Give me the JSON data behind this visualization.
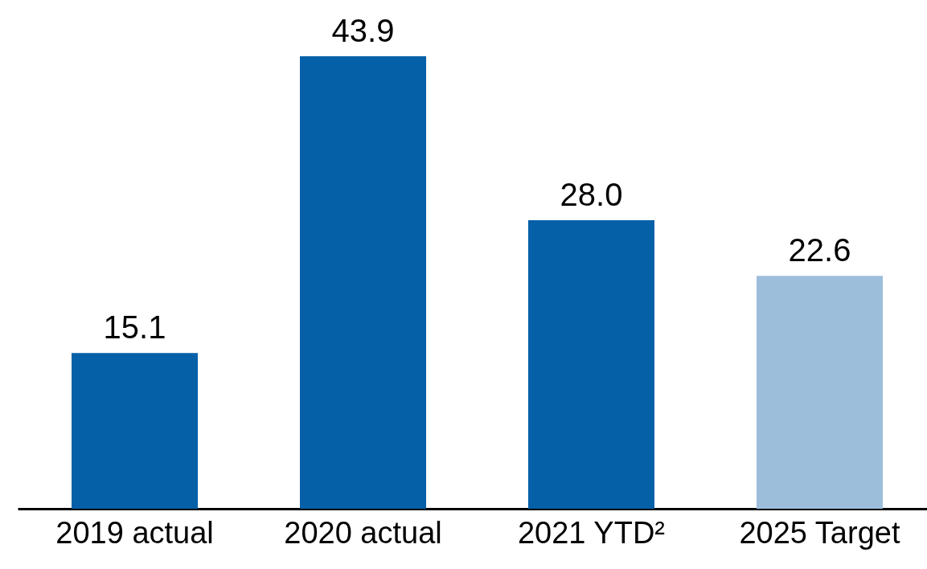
{
  "chart_data": {
    "type": "bar",
    "categories": [
      "2019 actual",
      "2020 actual",
      "2021 YTD²",
      "2025 Target"
    ],
    "values": [
      15.1,
      43.9,
      28.0,
      22.6
    ],
    "value_labels": [
      "15.1",
      "43.9",
      "28.0",
      "22.6"
    ],
    "colors": [
      "#0560a8",
      "#0560a8",
      "#0560a8",
      "#9dbedb"
    ]
  }
}
